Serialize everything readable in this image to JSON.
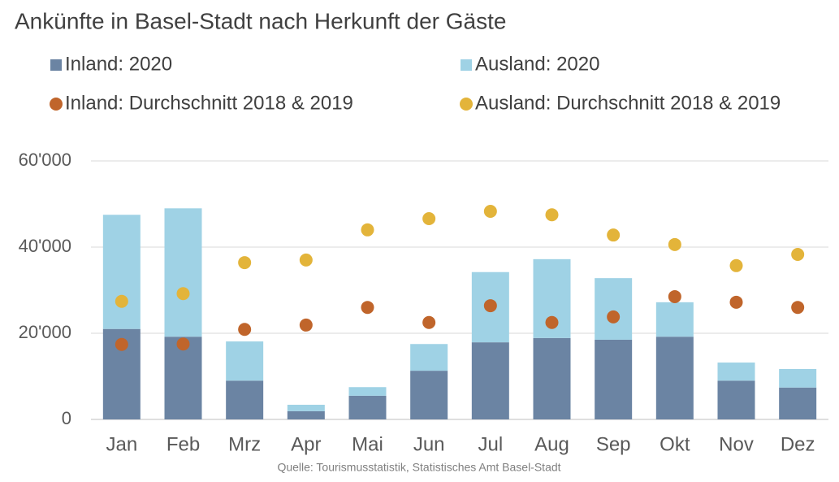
{
  "chart_data": {
    "type": "bar",
    "title": "Ankünfte in Basel-Stadt nach Herkunft der Gäste",
    "source": "Quelle: Tourismusstatistik, Statistisches Amt Basel-Stadt",
    "stacked": true,
    "categories": [
      "Jan",
      "Feb",
      "Mrz",
      "Apr",
      "Mai",
      "Jun",
      "Jul",
      "Aug",
      "Sep",
      "Okt",
      "Nov",
      "Dez"
    ],
    "series": [
      {
        "name": "Inland: 2020",
        "color": "#6b84a3",
        "kind": "bar",
        "values": [
          21000,
          19200,
          9000,
          1900,
          5500,
          11300,
          17900,
          18900,
          18500,
          19200,
          9000,
          7400
        ]
      },
      {
        "name": "Ausland: 2020",
        "color": "#9fd2e5",
        "kind": "bar",
        "values": [
          26500,
          29800,
          9100,
          1500,
          2000,
          6200,
          16300,
          18300,
          14300,
          8000,
          4200,
          4300
        ]
      },
      {
        "name": "Inland: Durchschnitt 2018 & 2019",
        "color": "#c0652b",
        "kind": "dot",
        "values": [
          17400,
          17500,
          20900,
          21900,
          26000,
          22500,
          26400,
          22500,
          23800,
          28500,
          27200,
          26000
        ]
      },
      {
        "name": "Ausland: Durchschnitt 2018 & 2019",
        "color": "#e3b43a",
        "kind": "dot",
        "values": [
          27400,
          29200,
          36400,
          37000,
          44000,
          46600,
          48300,
          47500,
          42800,
          40600,
          35700,
          38300
        ]
      }
    ],
    "ylim": [
      0,
      60000
    ],
    "yticks": [
      0,
      {
        "value": 20000,
        "label": "20'000"
      },
      {
        "value": 40000,
        "label": "40'000"
      },
      {
        "value": 60000,
        "label": "60'000"
      }
    ],
    "grid": true
  }
}
